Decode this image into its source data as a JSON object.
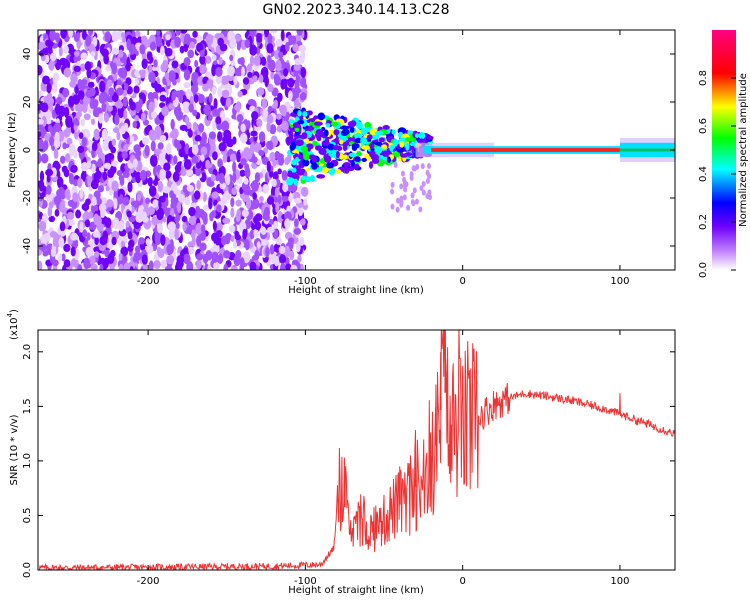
{
  "chart_data": [
    {
      "type": "heatmap",
      "title": "GN02.2023.340.14.13.C28",
      "xlabel": "Height of straight line (km)",
      "ylabel": "Frequency (Hz)",
      "xlim": [
        -270,
        135
      ],
      "ylim": [
        -50,
        50
      ],
      "xticks": [
        -200,
        -100,
        0,
        100
      ],
      "yticks": [
        -40,
        -20,
        0,
        20,
        40
      ],
      "description_regions": [
        {
          "x_range": [
            -270,
            -100
          ],
          "y_range": [
            -50,
            50
          ],
          "amplitude": 0.05,
          "pattern": "scattered noise"
        },
        {
          "x_range": [
            -110,
            -20
          ],
          "y_range": [
            -12,
            18
          ],
          "amplitude": 0.3,
          "pattern": "converging clustered returns"
        },
        {
          "x_range": [
            -20,
            100
          ],
          "y_range": [
            -1,
            1
          ],
          "amplitude": 0.95,
          "pattern": "narrow tone near 0 Hz"
        },
        {
          "x_range": [
            100,
            135
          ],
          "y_range": [
            -2,
            2
          ],
          "amplitude": 0.35,
          "pattern": "widened tone"
        }
      ],
      "colorbar": {
        "label": "Normalized spectral amplitude",
        "range": [
          0,
          1
        ],
        "ticks": [
          "0.0",
          "0.2",
          "0.4",
          "0.6",
          "0.8"
        ],
        "colors": [
          "#ffffff",
          "#7000ff",
          "#0000ff",
          "#00ffff",
          "#00ff00",
          "#ffff00",
          "#ff0000",
          "#ff0080"
        ]
      }
    },
    {
      "type": "line",
      "xlabel": "Height of straight line (km)",
      "ylabel": "SNR (10 * v/v)",
      "yscale_label": "(x10",
      "yscale_exponent": "4",
      "yscale_close": ")",
      "xlim": [
        -270,
        135
      ],
      "ylim": [
        0,
        22000
      ],
      "xticks": [
        -200,
        -100,
        0,
        100
      ],
      "yticks": [
        "0.0",
        "0.5",
        "1.0",
        "1.5",
        "2.0"
      ],
      "ytick_values": [
        0,
        5000,
        10000,
        15000,
        20000
      ],
      "color": "#ee3333",
      "series": [
        {
          "x": [
            -270,
            -200,
            -120,
            -90,
            -82,
            -78,
            -72,
            -65,
            -55,
            -45,
            -35,
            -28,
            -20,
            -15,
            -12,
            -8,
            -5,
            0,
            10,
            20,
            30,
            40,
            55,
            70,
            90,
            100,
            115,
            135
          ],
          "y": [
            200,
            250,
            350,
            500,
            2000,
            8000,
            3500,
            4000,
            3500,
            5500,
            6500,
            8000,
            9000,
            13000,
            18000,
            11000,
            13500,
            13000,
            14000,
            15200,
            15800,
            16200,
            15900,
            15500,
            14800,
            14300,
            13500,
            12500
          ],
          "spikes": [
            {
              "x": -75,
              "y": 8800
            },
            {
              "x": -40,
              "y": 9500
            },
            {
              "x": -30,
              "y": 12000
            },
            {
              "x": -17,
              "y": 17000
            },
            {
              "x": -14,
              "y": 20000
            },
            {
              "x": -11,
              "y": 22000
            },
            {
              "x": -8,
              "y": 16000
            },
            {
              "x": 100,
              "y": 16200
            }
          ]
        }
      ]
    }
  ]
}
